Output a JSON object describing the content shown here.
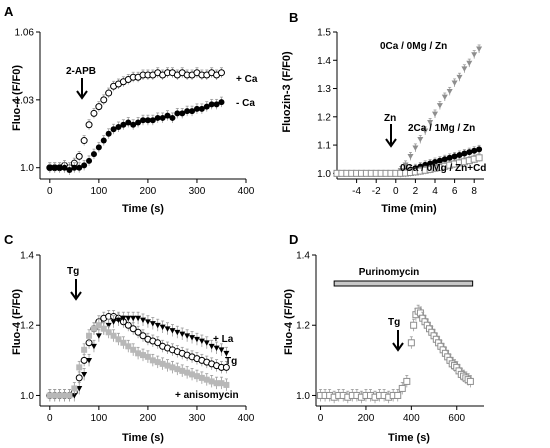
{
  "chart_data": [
    {
      "panel": "A",
      "type": "scatter",
      "xlabel": "Time (s)",
      "ylabel": "Fluo-4 (F/F0)",
      "xlim": [
        -20,
        400
      ],
      "ylim": [
        0.995,
        1.06
      ],
      "xticks": [
        "0",
        "100",
        "200",
        "300",
        "400"
      ],
      "yticks": [
        "1.0",
        "1.03",
        "1.06"
      ],
      "annotations": [
        {
          "text": "2-APB",
          "at_x": 50,
          "kind": "arrow-down"
        }
      ],
      "series": [
        {
          "name": "+ Ca",
          "marker": "open-circle",
          "x": [
            0,
            10,
            20,
            30,
            40,
            50,
            60,
            70,
            80,
            90,
            100,
            110,
            120,
            130,
            140,
            150,
            160,
            170,
            180,
            190,
            200,
            210,
            220,
            230,
            240,
            250,
            260,
            270,
            280,
            290,
            300,
            310,
            320,
            330,
            340,
            350
          ],
          "y": [
            1.0,
            1.0,
            1.0,
            1.001,
            1.0,
            1.002,
            1.005,
            1.012,
            1.019,
            1.024,
            1.027,
            1.03,
            1.033,
            1.036,
            1.037,
            1.038,
            1.039,
            1.04,
            1.04,
            1.041,
            1.041,
            1.041,
            1.042,
            1.041,
            1.042,
            1.042,
            1.041,
            1.042,
            1.041,
            1.041,
            1.042,
            1.041,
            1.041,
            1.042,
            1.041,
            1.042
          ]
        },
        {
          "name": "- Ca",
          "marker": "filled-circle",
          "x": [
            0,
            10,
            20,
            30,
            40,
            50,
            60,
            70,
            80,
            90,
            100,
            110,
            120,
            130,
            140,
            150,
            160,
            170,
            180,
            190,
            200,
            210,
            220,
            230,
            240,
            250,
            260,
            270,
            280,
            290,
            300,
            310,
            320,
            330,
            340,
            350
          ],
          "y": [
            1.0,
            1.0,
            1.0,
            1.0,
            0.999,
            1.0,
            1.0,
            1.001,
            1.003,
            1.006,
            1.009,
            1.012,
            1.015,
            1.017,
            1.018,
            1.019,
            1.02,
            1.019,
            1.02,
            1.021,
            1.021,
            1.021,
            1.022,
            1.022,
            1.023,
            1.022,
            1.024,
            1.024,
            1.025,
            1.025,
            1.026,
            1.026,
            1.027,
            1.028,
            1.028,
            1.029
          ]
        }
      ]
    },
    {
      "panel": "B",
      "type": "scatter",
      "xlabel": "Time (min)",
      "ylabel": "Fluozin-3 (F/F0)",
      "xlim": [
        -6,
        9
      ],
      "ylim": [
        0.98,
        1.5
      ],
      "xticks": [
        "-4",
        "-2",
        "0",
        "2",
        "4",
        "6",
        "8"
      ],
      "yticks": [
        "1.0",
        "1.1",
        "1.2",
        "1.3",
        "1.4",
        "1.5"
      ],
      "annotations": [
        {
          "text": "Zn",
          "at_x": 0,
          "kind": "arrow-down"
        }
      ],
      "series": [
        {
          "name": "0Ca / 0Mg / Zn",
          "marker": "filled-triangle-down",
          "x": [
            -6,
            -5.5,
            -5,
            -4.5,
            -4,
            -3.5,
            -3,
            -2.5,
            -2,
            -1.5,
            -1,
            -0.5,
            0,
            0.5,
            1,
            1.5,
            2,
            2.5,
            3,
            3.5,
            4,
            4.5,
            5,
            5.5,
            6,
            6.5,
            7,
            7.5,
            8,
            8.5
          ],
          "y": [
            1.0,
            1.0,
            1.0,
            1.0,
            1.0,
            1.0,
            1.0,
            1.0,
            1.0,
            1.0,
            1.0,
            1.0,
            1.0,
            1.01,
            1.03,
            1.06,
            1.09,
            1.12,
            1.15,
            1.18,
            1.21,
            1.24,
            1.27,
            1.29,
            1.32,
            1.34,
            1.37,
            1.39,
            1.42,
            1.44
          ]
        },
        {
          "name": "2Ca / 1Mg / Zn",
          "marker": "filled-circle",
          "x": [
            -6,
            -5.5,
            -5,
            -4.5,
            -4,
            -3.5,
            -3,
            -2.5,
            -2,
            -1.5,
            -1,
            -0.5,
            0,
            0.5,
            1,
            1.5,
            2,
            2.5,
            3,
            3.5,
            4,
            4.5,
            5,
            5.5,
            6,
            6.5,
            7,
            7.5,
            8,
            8.5
          ],
          "y": [
            1.0,
            1.0,
            1.0,
            1.0,
            1.0,
            1.0,
            1.0,
            1.0,
            1.0,
            1.0,
            1.0,
            1.0,
            1.0,
            1.003,
            1.008,
            1.013,
            1.018,
            1.024,
            1.03,
            1.035,
            1.04,
            1.045,
            1.05,
            1.055,
            1.06,
            1.065,
            1.07,
            1.075,
            1.08,
            1.085
          ]
        },
        {
          "name": "0Ca / 0Mg / Zn+Cd",
          "marker": "open-square",
          "x": [
            -6,
            -5.5,
            -5,
            -4.5,
            -4,
            -3.5,
            -3,
            -2.5,
            -2,
            -1.5,
            -1,
            -0.5,
            0,
            0.5,
            1,
            1.5,
            2,
            2.5,
            3,
            3.5,
            4,
            4.5,
            5,
            5.5,
            6,
            6.5,
            7,
            7.5,
            8,
            8.5
          ],
          "y": [
            1.0,
            1.0,
            1.0,
            1.0,
            1.0,
            1.0,
            1.0,
            1.0,
            1.0,
            1.0,
            1.0,
            1.0,
            1.0,
            1.0,
            1.001,
            1.003,
            1.005,
            1.008,
            1.011,
            1.014,
            1.018,
            1.021,
            1.025,
            1.029,
            1.033,
            1.037,
            1.041,
            1.045,
            1.05,
            1.055
          ]
        }
      ]
    },
    {
      "panel": "C",
      "type": "scatter",
      "xlabel": "Time (s)",
      "ylabel": "Fluo-4 (F/F0)",
      "xlim": [
        -20,
        400
      ],
      "ylim": [
        0.97,
        1.4
      ],
      "xticks": [
        "0",
        "100",
        "200",
        "300",
        "400"
      ],
      "yticks": [
        "1.0",
        "1.2",
        "1.4"
      ],
      "annotations": [
        {
          "text": "Tg",
          "at_x": 40,
          "kind": "arrow-down"
        }
      ],
      "series": [
        {
          "name": "Tg",
          "marker": "open-circle",
          "x": [
            0,
            10,
            20,
            30,
            40,
            50,
            60,
            70,
            80,
            90,
            100,
            110,
            120,
            130,
            140,
            150,
            160,
            170,
            180,
            190,
            200,
            210,
            220,
            230,
            240,
            250,
            260,
            270,
            280,
            290,
            300,
            310,
            320,
            330,
            340,
            350,
            360
          ],
          "y": [
            1.0,
            1.0,
            1.0,
            1.0,
            1.0,
            1.01,
            1.05,
            1.1,
            1.15,
            1.19,
            1.21,
            1.22,
            1.225,
            1.225,
            1.22,
            1.21,
            1.2,
            1.19,
            1.18,
            1.17,
            1.16,
            1.155,
            1.15,
            1.14,
            1.135,
            1.13,
            1.125,
            1.12,
            1.115,
            1.11,
            1.105,
            1.1,
            1.095,
            1.09,
            1.085,
            1.08,
            1.08
          ]
        },
        {
          "name": "+ La",
          "marker": "filled-triangle-down",
          "x": [
            50,
            60,
            70,
            80,
            90,
            100,
            110,
            120,
            130,
            140,
            150,
            160,
            170,
            180,
            190,
            200,
            210,
            220,
            230,
            240,
            250,
            260,
            270,
            280,
            290,
            300,
            310,
            320,
            330,
            340,
            350,
            360
          ],
          "y": [
            1.0,
            1.02,
            1.06,
            1.1,
            1.14,
            1.17,
            1.19,
            1.2,
            1.21,
            1.215,
            1.22,
            1.22,
            1.22,
            1.22,
            1.215,
            1.21,
            1.205,
            1.2,
            1.195,
            1.19,
            1.185,
            1.18,
            1.175,
            1.17,
            1.165,
            1.16,
            1.155,
            1.15,
            1.14,
            1.135,
            1.13,
            1.12
          ]
        },
        {
          "name": "+ anisomycin",
          "marker": "filled-square",
          "x": [
            0,
            10,
            20,
            30,
            40,
            50,
            60,
            70,
            80,
            90,
            100,
            110,
            120,
            130,
            140,
            150,
            160,
            170,
            180,
            190,
            200,
            210,
            220,
            230,
            240,
            250,
            260,
            270,
            280,
            290,
            300,
            310,
            320,
            330,
            340,
            350,
            360
          ],
          "y": [
            1.0,
            1.0,
            1.0,
            1.0,
            1.0,
            1.02,
            1.08,
            1.13,
            1.17,
            1.19,
            1.2,
            1.19,
            1.18,
            1.17,
            1.16,
            1.15,
            1.14,
            1.13,
            1.12,
            1.115,
            1.11,
            1.1,
            1.095,
            1.09,
            1.085,
            1.08,
            1.075,
            1.07,
            1.065,
            1.06,
            1.055,
            1.05,
            1.045,
            1.04,
            1.035,
            1.035,
            1.03
          ]
        }
      ]
    },
    {
      "panel": "D",
      "type": "scatter",
      "xlabel": "Time (s)",
      "ylabel": "Fluo-4 (F/F0)",
      "xlim": [
        -20,
        720
      ],
      "ylim": [
        0.97,
        1.4
      ],
      "xticks": [
        "0",
        "200",
        "400",
        "600"
      ],
      "yticks": [
        "1.0",
        "1.2",
        "1.4"
      ],
      "annotations": [
        {
          "text": "Tg",
          "at_x": 330,
          "kind": "arrow-down"
        },
        {
          "text": "Purinomycin",
          "from_x": 60,
          "to_x": 670,
          "kind": "bar"
        }
      ],
      "series": [
        {
          "name": "",
          "marker": "open-square",
          "x": [
            0,
            20,
            40,
            60,
            80,
            100,
            120,
            140,
            160,
            180,
            200,
            220,
            240,
            260,
            280,
            300,
            320,
            340,
            360,
            380,
            400,
            410,
            420,
            430,
            440,
            450,
            460,
            470,
            480,
            490,
            500,
            510,
            520,
            530,
            540,
            550,
            560,
            570,
            580,
            590,
            600,
            610,
            620,
            630,
            640,
            650,
            660
          ],
          "y": [
            1.0,
            1.0,
            1.0,
            0.995,
            1.0,
            1.0,
            0.995,
            1.0,
            1.0,
            0.995,
            1.0,
            1.0,
            0.995,
            1.0,
            1.0,
            0.995,
            1.0,
            1.0,
            1.02,
            1.04,
            1.15,
            1.2,
            1.23,
            1.24,
            1.235,
            1.22,
            1.21,
            1.2,
            1.19,
            1.18,
            1.17,
            1.16,
            1.15,
            1.14,
            1.13,
            1.12,
            1.11,
            1.1,
            1.09,
            1.085,
            1.08,
            1.07,
            1.06,
            1.055,
            1.05,
            1.045,
            1.04
          ]
        }
      ]
    }
  ],
  "panels": {
    "A": {
      "label": "A",
      "ylabel": "Fluo-4 (F/F0)",
      "xlabel": "Time (s)",
      "arrow_text": "2-APB",
      "legend1": "+ Ca",
      "legend2": "- Ca"
    },
    "B": {
      "label": "B",
      "ylabel": "Fluozin-3 (F/F0)",
      "xlabel": "Time (min)",
      "arrow_text": "Zn",
      "legend1": "0Ca / 0Mg / Zn",
      "legend2": "2Ca / 1Mg / Zn",
      "legend3": "0Ca / 0Mg / Zn+Cd"
    },
    "C": {
      "label": "C",
      "ylabel": "Fluo-4 (F/F0)",
      "xlabel": "Time (s)",
      "arrow_text": "Tg",
      "legend1": "+ La",
      "legend2": "Tg",
      "legend3": "+ anisomycin"
    },
    "D": {
      "label": "D",
      "ylabel": "Fluo-4 (F/F0)",
      "xlabel": "Time (s)",
      "arrow_text": "Tg",
      "bar_text": "Purinomycin"
    }
  },
  "colors": {
    "black": "#000000",
    "gray": "#8e8e8e",
    "light_gray": "#b8b8b8",
    "white": "#ffffff"
  }
}
